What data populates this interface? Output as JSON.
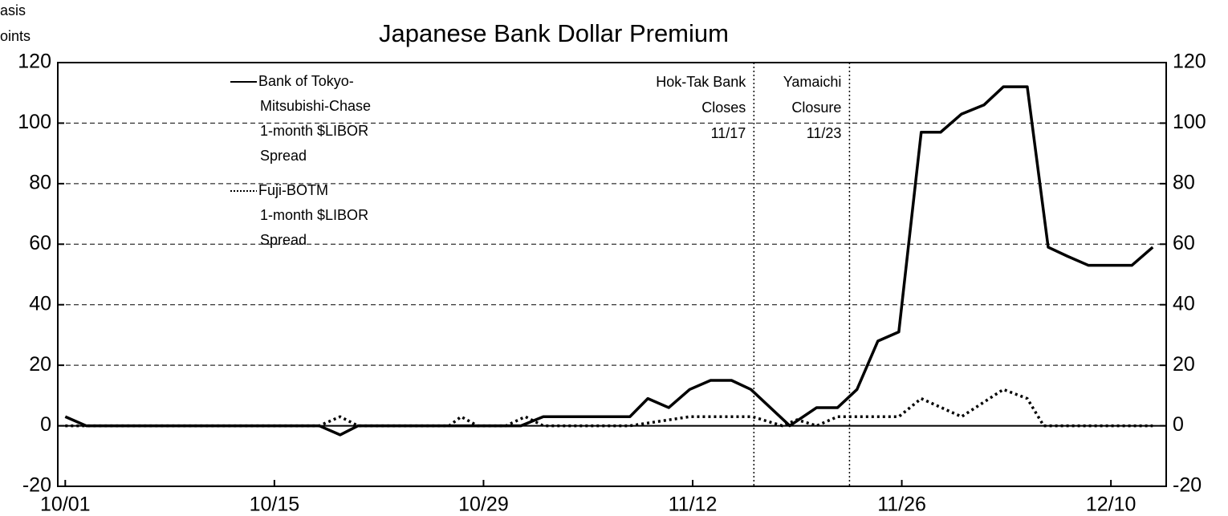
{
  "chart_data": {
    "type": "line",
    "title": "Japanese Bank Dollar Premium",
    "ylabel": [
      "asis",
      "oints"
    ],
    "xlim": [
      -0.5,
      73.7
    ],
    "xticks": [
      {
        "value": 0,
        "label": "10/01"
      },
      {
        "value": 14,
        "label": "10/15"
      },
      {
        "value": 28,
        "label": "10/29"
      },
      {
        "value": 42,
        "label": "11/12"
      },
      {
        "value": 56,
        "label": "11/26"
      },
      {
        "value": 70,
        "label": "12/10"
      }
    ],
    "ylim": [
      -20,
      120
    ],
    "yticks": [
      -20,
      0,
      20,
      40,
      60,
      80,
      100,
      120
    ],
    "y2lim": [
      -20,
      120
    ],
    "y2ticks": [
      -20,
      0,
      20,
      40,
      60,
      80,
      100,
      120
    ],
    "grid": true,
    "series": [
      {
        "name": [
          "Bank of Tokyo-",
          "Mitsubishi-Chase",
          "1-month $LIBOR",
          "Spread"
        ],
        "color": "#000000",
        "dash": "solid",
        "x": [
          0,
          1.4,
          17,
          18.4,
          19.6,
          30.5,
          32,
          37.8,
          39,
          40.4,
          41.8,
          43.2,
          44.6,
          45.9,
          48.5,
          50.3,
          51.7,
          53,
          54.4,
          55.8,
          57.3,
          58.6,
          60,
          61.5,
          62.8,
          64.4,
          65.8,
          67.1,
          68.5,
          71.4,
          72.8
        ],
        "values": [
          3,
          0,
          0,
          -3,
          0,
          0,
          3,
          3,
          9,
          6,
          12,
          15,
          15,
          12,
          0,
          6,
          6,
          12,
          28,
          31,
          97,
          97,
          103,
          106,
          112,
          112,
          59,
          56,
          53,
          53,
          59
        ]
      },
      {
        "name": [
          "Fuji-BOTM",
          "1-month $LIBOR",
          "Spread"
        ],
        "color": "#000000",
        "dash": "dotted",
        "x": [
          0,
          17,
          18.4,
          19.6,
          25.7,
          26.5,
          27.6,
          29.5,
          30.8,
          32,
          37.8,
          41.8,
          46,
          48,
          49,
          50.3,
          51.7,
          55.8,
          57.3,
          60,
          62.8,
          64.4,
          65.5,
          72.8
        ],
        "values": [
          0,
          0,
          3,
          0,
          0,
          3,
          0,
          0,
          3,
          0,
          0,
          3,
          3,
          0,
          2,
          0,
          3,
          3,
          9,
          3,
          12,
          9,
          0,
          0
        ]
      }
    ],
    "annotations": [
      {
        "lines": [
          "Hok-Tak Bank",
          "Closes",
          "11/17"
        ],
        "x": 46.1
      },
      {
        "lines": [
          "Yamaichi",
          "Closure",
          "11/23"
        ],
        "x": 52.5
      }
    ]
  }
}
